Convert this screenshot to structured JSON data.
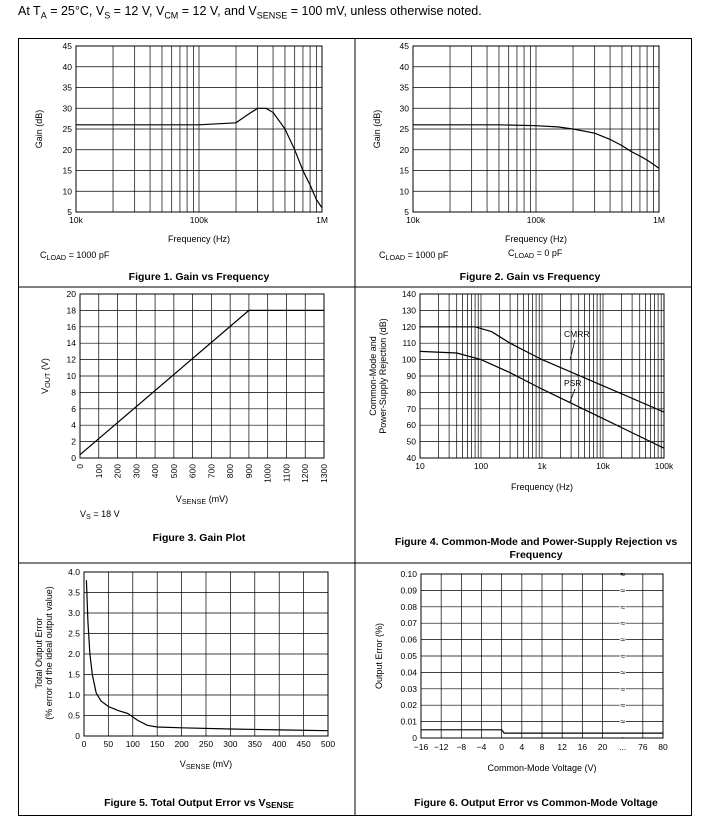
{
  "header": {
    "prefix": "At T",
    "ta_sub": "A",
    "ta_rest": " = 25°C, V",
    "vs_sub": "S",
    "vs_rest": " = 12 V, V",
    "vcm_sub": "CM",
    "vcm_rest": " = 12 V, and V",
    "vsense_sub": "SENSE",
    "suffix": " = 100 mV, unless otherwise noted."
  },
  "chart_data": [
    {
      "id": "fig1",
      "type": "line",
      "title": "Figure 1. Gain vs Frequency",
      "xlabel": "Frequency (Hz)",
      "ylabel": "Gain (dB)",
      "xscale": "log",
      "xlim": [
        10000,
        1000000
      ],
      "ylim": [
        5,
        45
      ],
      "x_ticks": [
        {
          "v": 10000,
          "label": "10k"
        },
        {
          "v": 100000,
          "label": "100k"
        },
        {
          "v": 1000000,
          "label": "1M"
        }
      ],
      "y_ticks": [
        5,
        10,
        15,
        20,
        25,
        30,
        35,
        40,
        45
      ],
      "grid": true,
      "notes": [
        {
          "main": "C",
          "sub": "LOAD",
          "rest": " = 1000 pF"
        }
      ],
      "series": [
        {
          "x": [
            10000,
            50000,
            100000,
            200000,
            250000,
            300000,
            350000,
            400000,
            500000,
            600000,
            700000,
            800000,
            900000,
            1000000
          ],
          "y": [
            26,
            26,
            26,
            26.5,
            28.5,
            30,
            30,
            29,
            25,
            20,
            15,
            11.5,
            8,
            6
          ]
        }
      ]
    },
    {
      "id": "fig2",
      "type": "line",
      "title": "Figure 2. Gain vs Frequency",
      "xlabel": "Frequency (Hz)",
      "ylabel": "Gain (dB)",
      "xscale": "log",
      "xlim": [
        10000,
        1000000
      ],
      "ylim": [
        5,
        45
      ],
      "x_ticks": [
        {
          "v": 10000,
          "label": "10k"
        },
        {
          "v": 100000,
          "label": "100k"
        },
        {
          "v": 1000000,
          "label": "1M"
        }
      ],
      "y_ticks": [
        5,
        10,
        15,
        20,
        25,
        30,
        35,
        40,
        45
      ],
      "grid": true,
      "notes": [
        {
          "main": "C",
          "sub": "LOAD",
          "rest": " = 1000 pF"
        },
        {
          "main": "C",
          "sub": "LOAD",
          "rest": " = 0 pF"
        }
      ],
      "series": [
        {
          "x": [
            10000,
            50000,
            100000,
            150000,
            200000,
            300000,
            400000,
            500000,
            600000,
            700000,
            800000,
            900000,
            1000000
          ],
          "y": [
            26,
            26,
            25.8,
            25.5,
            25,
            24,
            22.5,
            21,
            19.5,
            18.5,
            17.5,
            16.5,
            15.5
          ]
        }
      ]
    },
    {
      "id": "fig3",
      "type": "line",
      "title": "Figure 3. Gain Plot",
      "xlabel_main": "V",
      "xlabel_sub": "SENSE",
      "xlabel_rest": " (mV)",
      "ylabel_main": "V",
      "ylabel_sub": "OUT",
      "ylabel_rest": " (V)",
      "xlim": [
        0,
        1300
      ],
      "ylim": [
        0,
        20
      ],
      "x_ticks": [
        0,
        100,
        200,
        300,
        400,
        500,
        600,
        700,
        800,
        900,
        1000,
        1100,
        1200,
        1300
      ],
      "y_ticks": [
        0,
        2,
        4,
        6,
        8,
        10,
        12,
        14,
        16,
        18,
        20
      ],
      "grid": true,
      "notes": [
        {
          "main": "V",
          "sub": "S",
          "rest": " = 18 V"
        }
      ],
      "series": [
        {
          "x": [
            0,
            900,
            1300
          ],
          "y": [
            0.4,
            18,
            18
          ]
        }
      ]
    },
    {
      "id": "fig4",
      "type": "line",
      "title": "Figure 4. Common-Mode and Power-Supply Rejection vs Frequency",
      "xlabel": "Frequency (Hz)",
      "ylabel_line1": "Common-Mode and",
      "ylabel_line2": "Power-Supply Rejection (dB)",
      "xscale": "log",
      "xlim": [
        10,
        100000
      ],
      "ylim": [
        40,
        140
      ],
      "x_ticks": [
        {
          "v": 10,
          "label": "10"
        },
        {
          "v": 100,
          "label": "100"
        },
        {
          "v": 1000,
          "label": "1k"
        },
        {
          "v": 10000,
          "label": "10k"
        },
        {
          "v": 100000,
          "label": "100k"
        }
      ],
      "y_ticks": [
        40,
        50,
        60,
        70,
        80,
        90,
        100,
        110,
        120,
        130,
        140
      ],
      "grid": true,
      "series": [
        {
          "name": "CMRR",
          "x": [
            10,
            80,
            150,
            300,
            1000,
            10000,
            100000
          ],
          "y": [
            120,
            120,
            117,
            110,
            100,
            84,
            68
          ]
        },
        {
          "name": "PSR",
          "x": [
            10,
            40,
            100,
            300,
            1000,
            10000,
            100000
          ],
          "y": [
            105,
            104,
            100,
            92,
            82,
            64,
            46
          ]
        }
      ]
    },
    {
      "id": "fig5",
      "type": "line",
      "title_main": "Figure 5. Total Output Error vs V",
      "title_sub": "SENSE",
      "xlabel_main": "V",
      "xlabel_sub": "SENSE",
      "xlabel_rest": " (mV)",
      "ylabel_line1": "Total Output Error",
      "ylabel_line2": "(% error of the ideal output value)",
      "xlim": [
        0,
        500
      ],
      "ylim": [
        0,
        4.0
      ],
      "x_ticks": [
        0,
        50,
        100,
        150,
        200,
        250,
        300,
        350,
        400,
        450,
        500
      ],
      "y_ticks": [
        {
          "v": 0,
          "label": "0"
        },
        {
          "v": 0.5,
          "label": "0.5"
        },
        {
          "v": 1.0,
          "label": "1.0"
        },
        {
          "v": 1.5,
          "label": "1.5"
        },
        {
          "v": 2.0,
          "label": "2.0"
        },
        {
          "v": 2.5,
          "label": "2.5"
        },
        {
          "v": 3.0,
          "label": "3.0"
        },
        {
          "v": 3.5,
          "label": "3.5"
        },
        {
          "v": 4.0,
          "label": "4.0"
        }
      ],
      "grid": true,
      "series": [
        {
          "x": [
            5,
            8,
            12,
            17,
            25,
            35,
            50,
            70,
            90,
            110,
            130,
            150,
            200,
            300,
            400,
            500
          ],
          "y": [
            3.8,
            2.8,
            2.0,
            1.5,
            1.05,
            0.85,
            0.72,
            0.62,
            0.55,
            0.38,
            0.26,
            0.22,
            0.2,
            0.17,
            0.15,
            0.13
          ]
        }
      ]
    },
    {
      "id": "fig6",
      "type": "line",
      "title": "Figure 6. Output Error vs Common-Mode Voltage",
      "xlabel": "Common-Mode Voltage (V)",
      "ylabel": "Output Error (%)",
      "xlim": [
        -16,
        80
      ],
      "ylim": [
        0,
        0.1
      ],
      "x_ticks": [
        {
          "p": 0,
          "label": "−16"
        },
        {
          "p": 1,
          "label": "−12"
        },
        {
          "p": 2,
          "label": "−8"
        },
        {
          "p": 3,
          "label": "−4"
        },
        {
          "p": 4,
          "label": "0"
        },
        {
          "p": 5,
          "label": "4"
        },
        {
          "p": 6,
          "label": "8"
        },
        {
          "p": 7,
          "label": "12"
        },
        {
          "p": 8,
          "label": "16"
        },
        {
          "p": 9,
          "label": "20"
        },
        {
          "p": 10,
          "label": "..."
        },
        {
          "p": 11,
          "label": "76"
        },
        {
          "p": 12,
          "label": "80"
        }
      ],
      "y_ticks": [
        {
          "v": 0,
          "label": "0"
        },
        {
          "v": 0.01,
          "label": "0.01"
        },
        {
          "v": 0.02,
          "label": "0.02"
        },
        {
          "v": 0.03,
          "label": "0.03"
        },
        {
          "v": 0.04,
          "label": "0.04"
        },
        {
          "v": 0.05,
          "label": "0.05"
        },
        {
          "v": 0.06,
          "label": "0.06"
        },
        {
          "v": 0.07,
          "label": "0.07"
        },
        {
          "v": 0.08,
          "label": "0.08"
        },
        {
          "v": 0.09,
          "label": "0.09"
        },
        {
          "v": 0.1,
          "label": "0.10"
        }
      ],
      "grid": true,
      "break_symbol": "≈",
      "series": [
        {
          "x": [
            -16,
            0,
            0.5,
            80
          ],
          "y": [
            0.005,
            0.005,
            0.003,
            0.003
          ]
        }
      ]
    }
  ]
}
